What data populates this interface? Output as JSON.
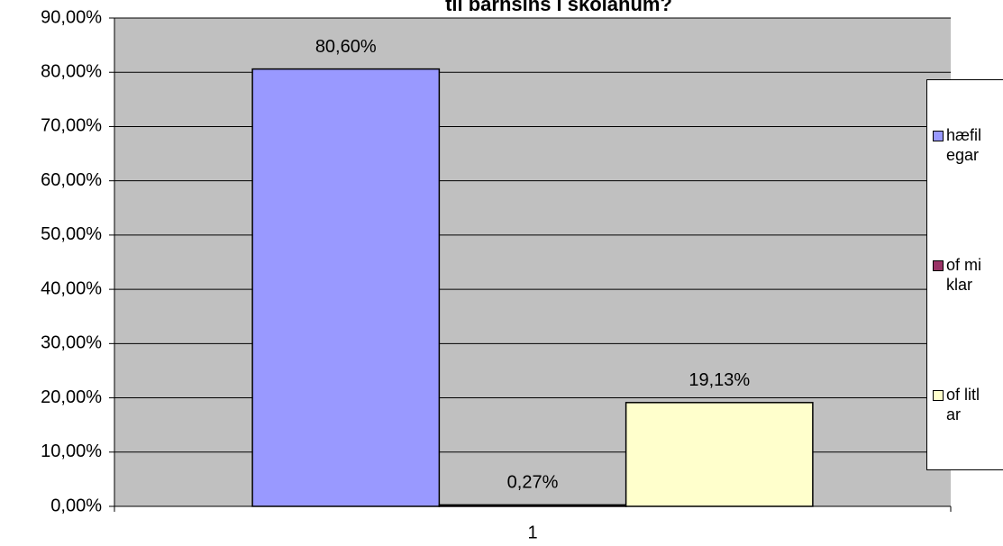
{
  "chart_data": {
    "type": "bar",
    "title": "til barnsins í skólanum?",
    "categories": [
      "1"
    ],
    "series": [
      {
        "name": "hæfilegar",
        "color": "#9999ff",
        "values": [
          80.6
        ],
        "value_labels": [
          "80,60%"
        ]
      },
      {
        "name": "of miklar",
        "color": "#993366",
        "values": [
          0.27
        ],
        "value_labels": [
          "0,27%"
        ]
      },
      {
        "name": "of litlar",
        "color": "#ffffcc",
        "values": [
          19.13
        ],
        "value_labels": [
          "19,13%"
        ]
      }
    ],
    "ylim": [
      0,
      90
    ],
    "yticks": [
      {
        "value": 0,
        "label": "0,00%"
      },
      {
        "value": 10,
        "label": "10,00%"
      },
      {
        "value": 20,
        "label": "20,00%"
      },
      {
        "value": 30,
        "label": "30,00%"
      },
      {
        "value": 40,
        "label": "40,00%"
      },
      {
        "value": 50,
        "label": "50,00%"
      },
      {
        "value": 60,
        "label": "60,00%"
      },
      {
        "value": 70,
        "label": "70,00%"
      },
      {
        "value": 80,
        "label": "80,00%"
      },
      {
        "value": 90,
        "label": "90,00%"
      }
    ],
    "grid": true,
    "legend": "right"
  }
}
